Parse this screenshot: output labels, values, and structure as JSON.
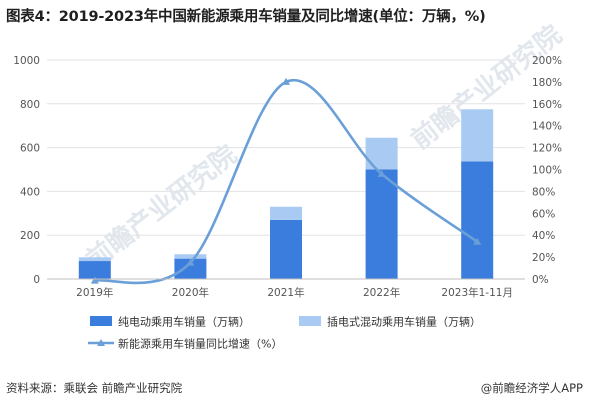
{
  "title": "图表4：2019-2023年中国新能源乘用车销量及同比增速(单位：万辆，%)",
  "source": "资料来源：乘联会 前瞻产业研究院",
  "credit": "@前瞻经济学人APP",
  "watermark": "前瞻产业研究院",
  "colors": {
    "pure_ev": "#3b7ddd",
    "phev": "#a9cbf3",
    "growth": "#6a9fd8",
    "grid": "#e3e3e3",
    "axis_text": "#555555"
  },
  "chart_data": {
    "type": "bar",
    "stacked": true,
    "categories": [
      "2019年",
      "2020年",
      "2021年",
      "2022年",
      "2023年1-11月"
    ],
    "series": [
      {
        "name": "纯电动乘用车销量（万辆）",
        "values": [
          82,
          93,
          270,
          500,
          537
        ],
        "axis": "left"
      },
      {
        "name": "插电式混动乘用车销量（万辆）",
        "values": [
          17,
          20,
          60,
          145,
          238
        ],
        "axis": "left"
      },
      {
        "name": "新能源乘用车销量同比增速（%）",
        "type": "line",
        "values": [
          -1.5,
          15,
          180,
          96,
          34
        ],
        "axis": "right"
      }
    ],
    "ylim_left": [
      0,
      1000
    ],
    "yticks_left": [
      "0",
      "200",
      "400",
      "600",
      "800",
      "1000"
    ],
    "ylim_right": [
      0,
      200
    ],
    "yticks_right": [
      "0%",
      "20%",
      "40%",
      "60%",
      "80%",
      "100%",
      "120%",
      "140%",
      "160%",
      "180%",
      "200%"
    ],
    "grid": true,
    "legend_position": "bottom"
  }
}
